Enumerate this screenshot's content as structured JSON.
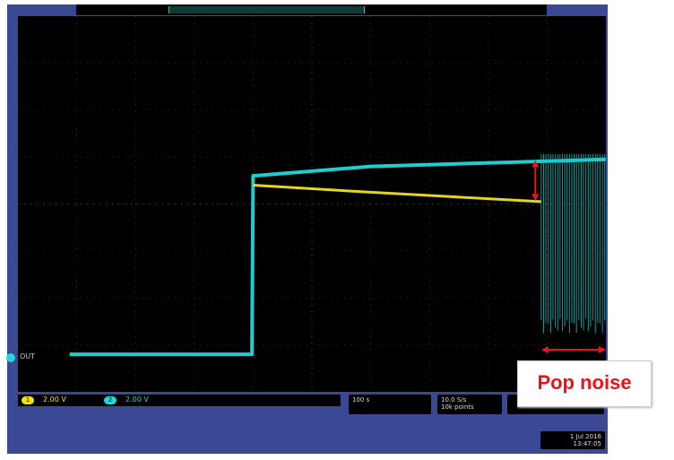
{
  "scope": {
    "ch1_scale": "2.00 V",
    "ch2_scale": "2.00 V",
    "ch1_number": "1",
    "ch2_number": "2",
    "trace_label": "OUT",
    "horizontal_scale": "100 s",
    "sample_rate": "10.0 S/s",
    "record_length": "10k points",
    "date": "1 Jul 2016",
    "time": "13:47:05"
  },
  "annotation": {
    "text": "Pop noise",
    "color": "#e8141e"
  },
  "colors": {
    "ch1": "#f0e020",
    "ch2": "#20d8d8",
    "frame": "#3b4893",
    "annotation": "#e8141e"
  },
  "chart_data": {
    "type": "line",
    "title": "",
    "xlabel": "",
    "ylabel": "",
    "grid": true,
    "divisions": {
      "horizontal": 10,
      "vertical": 8
    },
    "series": [
      {
        "channel": "2",
        "color": "#20d8d8",
        "x": [
          88,
          398,
          400,
          600,
          1000
        ],
        "y": [
          0,
          0,
          7.6,
          8.0,
          8.3
        ]
      },
      {
        "channel": "1",
        "color": "#f0e020",
        "x": [
          400,
          600,
          890
        ],
        "y": [
          7.2,
          6.9,
          6.5
        ]
      }
    ],
    "noise_region_x": [
      890,
      1000
    ],
    "xlim": [
      0,
      1000
    ],
    "ylim": [
      -1.6,
      14.4
    ]
  }
}
